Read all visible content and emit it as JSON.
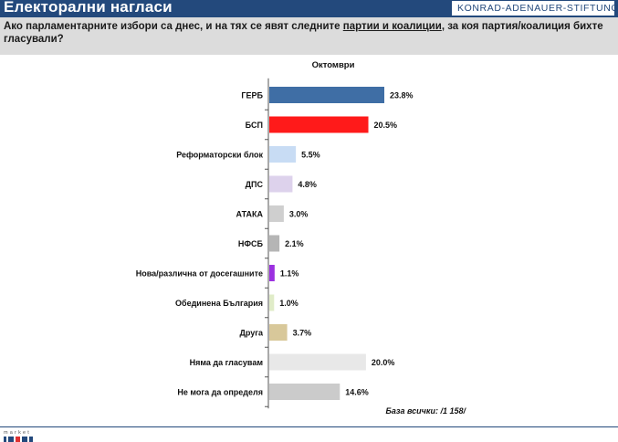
{
  "header": {
    "title": "Електорални нагласи",
    "org": "KONRAD-ADENAUER-STIFTUNG",
    "brand_color": "#23497c"
  },
  "question": {
    "part1": "Ако парламентарните избори са днес, и на тях се явят следните ",
    "underlined": "партии и коалиции",
    "part2": ", за коя партия/коалиция бихте гласували?"
  },
  "footer": {
    "logo_text": "market links"
  },
  "chart_data": {
    "type": "bar",
    "orientation": "horizontal",
    "series_title": "Октомври",
    "categories": [
      "ГЕРБ",
      "БСП",
      "Реформаторски блок",
      "ДПС",
      "АТАКА",
      "НФСБ",
      "Нова/различна от досегашните",
      "Обединена България",
      "Друга",
      "Няма да гласувам",
      "Не мога да определя"
    ],
    "values": [
      23.8,
      20.5,
      5.5,
      4.8,
      3.0,
      2.1,
      1.1,
      1.0,
      3.7,
      20.0,
      14.6
    ],
    "value_labels": [
      "23.8%",
      "20.5%",
      "5.5%",
      "4.8%",
      "3.0%",
      "2.1%",
      "1.1%",
      "1.0%",
      "3.7%",
      "20.0%",
      "14.6%"
    ],
    "colors": [
      "#3f6ea5",
      "#ff1a1a",
      "#c8dcf4",
      "#ddd2ec",
      "#cfcfcf",
      "#b5b5b5",
      "#9b30e0",
      "#e0ecc8",
      "#d8c89a",
      "#e8e8e8",
      "#cbcbcb"
    ],
    "base_note": "База всички: /1 158/",
    "xlim": [
      0,
      25
    ]
  }
}
